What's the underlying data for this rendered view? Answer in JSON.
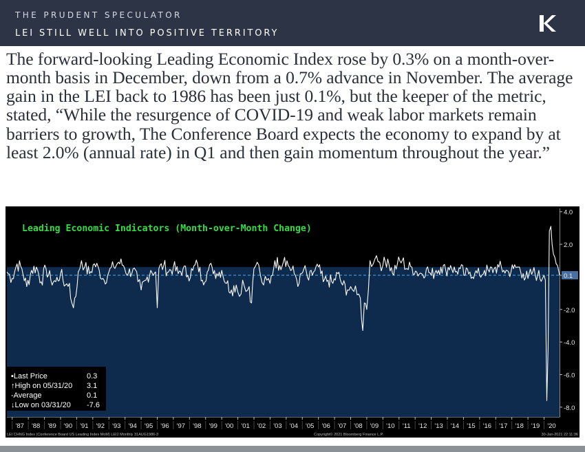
{
  "header": {
    "brand": "THE PRUDENT SPECULATOR",
    "title": "LEI STILL WELL INTO POSITIVE TERRITORY"
  },
  "body_text": "The forward-looking Leading Economic Index rose by 0.3% on a month-over-month basis in December, down from a 0.7% advance in November. The average gain in the LEI back to 1986 has been just 0.1%, but the keeper of the metric, stated, “While the resurgence of COVID-19 and weak labor markets remain barriers to growth, The Conference Board expects the economy to expand by at least 2.0% (annual rate) in Q1 and then gain momentum throughout the year.”",
  "colors": {
    "header_bg": "#2c3445",
    "plot_fill": "#0e2a4c",
    "line": "#ffffff",
    "average_line": "#3fa0e8",
    "title_green": "#33dd44",
    "last_tag": "#4a6fa0"
  },
  "legend": [
    {
      "label": "Last Price",
      "value": "0.3"
    },
    {
      "label": "High on 05/31/20",
      "value": "3.1"
    },
    {
      "label": "Average",
      "value": "0.1"
    },
    {
      "label": "Low on 03/31/20",
      "value": "-7.6"
    }
  ],
  "footer": {
    "left": "LEI CHNG Index (Conference Board US Leading Index MoM) LEI2  Monthly 31AUG1986-3",
    "center": "Copyright© 2021 Bloomberg Finance L.P.",
    "right": "30-Jan-2021 22:11:36"
  },
  "chart_data": {
    "type": "line",
    "title": "Leading Economic Indicators (Month-over-Month Change)",
    "xlabel": "",
    "ylabel": "",
    "x_tick_labels": [
      "'87",
      "'88",
      "'89",
      "'90",
      "'91",
      "'92",
      "'93",
      "'94",
      "'95",
      "'96",
      "'97",
      "'98",
      "'99",
      "'00",
      "'01",
      "'02",
      "'03",
      "'04",
      "'05",
      "'06",
      "'07",
      "'08",
      "'09",
      "'10",
      "'11",
      "'12",
      "'13",
      "'14",
      "'15",
      "'16",
      "'17",
      "'18",
      "'19",
      "'20"
    ],
    "y_ticks": [
      4.0,
      2.0,
      0.1,
      -2.0,
      -4.0,
      -6.0,
      -8.0
    ],
    "y_tick_labels": [
      "4.0",
      "2.0",
      "0.1",
      "-2.0",
      "-4.0",
      "-6.0",
      "-8.0"
    ],
    "ylim": [
      -8.6,
      4.2
    ],
    "x_range": [
      1986.67,
      2020.96
    ],
    "average": 0.1,
    "last_value_tag": "0.1",
    "grid": false,
    "legend_position": "bottom-left",
    "series": [
      {
        "x": [
          1986.67,
          1987.0,
          1987.3,
          1987.6,
          1987.9,
          1988.2,
          1988.5,
          1988.8,
          1989.1,
          1989.4,
          1989.7,
          1990.0,
          1990.3,
          1990.55,
          1990.7,
          1990.8,
          1990.95,
          1991.1,
          1991.3,
          1991.5,
          1991.8,
          1992.1,
          1992.4,
          1992.7,
          1993.0,
          1993.3,
          1993.6,
          1993.9,
          1994.2,
          1994.5,
          1994.8,
          1995.0,
          1995.3,
          1995.6,
          1995.9,
          1996.0,
          1996.1,
          1996.4,
          1996.7,
          1997.0,
          1997.3,
          1997.6,
          1997.9,
          1998.2,
          1998.5,
          1998.8,
          1999.1,
          1999.4,
          1999.7,
          2000.0,
          2000.3,
          2000.6,
          2000.9,
          2001.1,
          2001.3,
          2001.5,
          2001.7,
          2001.85,
          2002.0,
          2002.2,
          2002.4,
          2002.6,
          2002.8,
          2003.0,
          2003.3,
          2003.6,
          2003.9,
          2004.2,
          2004.5,
          2004.8,
          2005.1,
          2005.4,
          2005.7,
          2006.0,
          2006.3,
          2006.6,
          2006.9,
          2007.2,
          2007.5,
          2007.8,
          2008.0,
          2008.2,
          2008.4,
          2008.6,
          2008.75,
          2008.85,
          2009.0,
          2009.2,
          2009.4,
          2009.6,
          2009.8,
          2010.0,
          2010.3,
          2010.6,
          2010.9,
          2011.2,
          2011.5,
          2011.8,
          2012.1,
          2012.4,
          2012.7,
          2013.0,
          2013.3,
          2013.6,
          2013.9,
          2014.2,
          2014.5,
          2014.8,
          2015.1,
          2015.4,
          2015.7,
          2016.0,
          2016.3,
          2016.6,
          2016.9,
          2017.2,
          2017.5,
          2017.8,
          2018.1,
          2018.4,
          2018.7,
          2019.0,
          2019.3,
          2019.6,
          2019.9,
          2020.0,
          2020.08,
          2020.17,
          2020.25,
          2020.33,
          2020.42,
          2020.5,
          2020.58,
          2020.67,
          2020.75,
          2020.83,
          2020.92,
          2020.96
        ],
        "values": [
          0.3,
          -0.1,
          0.8,
          0.5,
          -0.6,
          0.4,
          0.6,
          -0.3,
          0.5,
          -0.2,
          -0.3,
          0.2,
          -0.5,
          -0.4,
          -1.6,
          -1.9,
          -1.2,
          0.3,
          1.0,
          0.6,
          0.2,
          0.8,
          0.4,
          -0.2,
          0.3,
          0.6,
          0.9,
          0.7,
          0.2,
          0.5,
          -0.3,
          -0.8,
          -0.2,
          0.4,
          0.3,
          -1.9,
          0.5,
          0.7,
          0.3,
          0.6,
          0.2,
          0.5,
          0.1,
          0.4,
          0.8,
          -0.2,
          0.3,
          0.6,
          0.2,
          0.4,
          -0.4,
          -0.8,
          -0.5,
          -1.2,
          -0.2,
          -0.9,
          -0.6,
          -1.6,
          0.5,
          0.9,
          0.1,
          -0.5,
          -0.2,
          -0.4,
          1.0,
          0.7,
          1.2,
          0.6,
          0.2,
          -0.4,
          0.5,
          -0.2,
          0.3,
          0.6,
          -0.3,
          -0.2,
          -0.4,
          0.2,
          -0.5,
          -0.8,
          -0.6,
          -0.9,
          -1.1,
          -1.3,
          -3.3,
          -1.6,
          -2.0,
          1.0,
          0.8,
          1.3,
          0.9,
          0.7,
          1.1,
          0.2,
          0.8,
          1.0,
          0.5,
          0.6,
          0.3,
          0.2,
          0.5,
          0.1,
          0.4,
          0.6,
          0.4,
          0.7,
          0.3,
          0.5,
          0.1,
          0.3,
          0.2,
          0.1,
          0.4,
          0.3,
          0.5,
          0.6,
          0.4,
          0.3,
          0.5,
          0.6,
          0.2,
          -0.1,
          0.3,
          0.1,
          -0.1,
          0.1,
          -0.2,
          -7.6,
          -4.4,
          2.8,
          3.1,
          2.0,
          1.4,
          1.2,
          0.8,
          0.7,
          0.3,
          0.1
        ]
      }
    ]
  }
}
